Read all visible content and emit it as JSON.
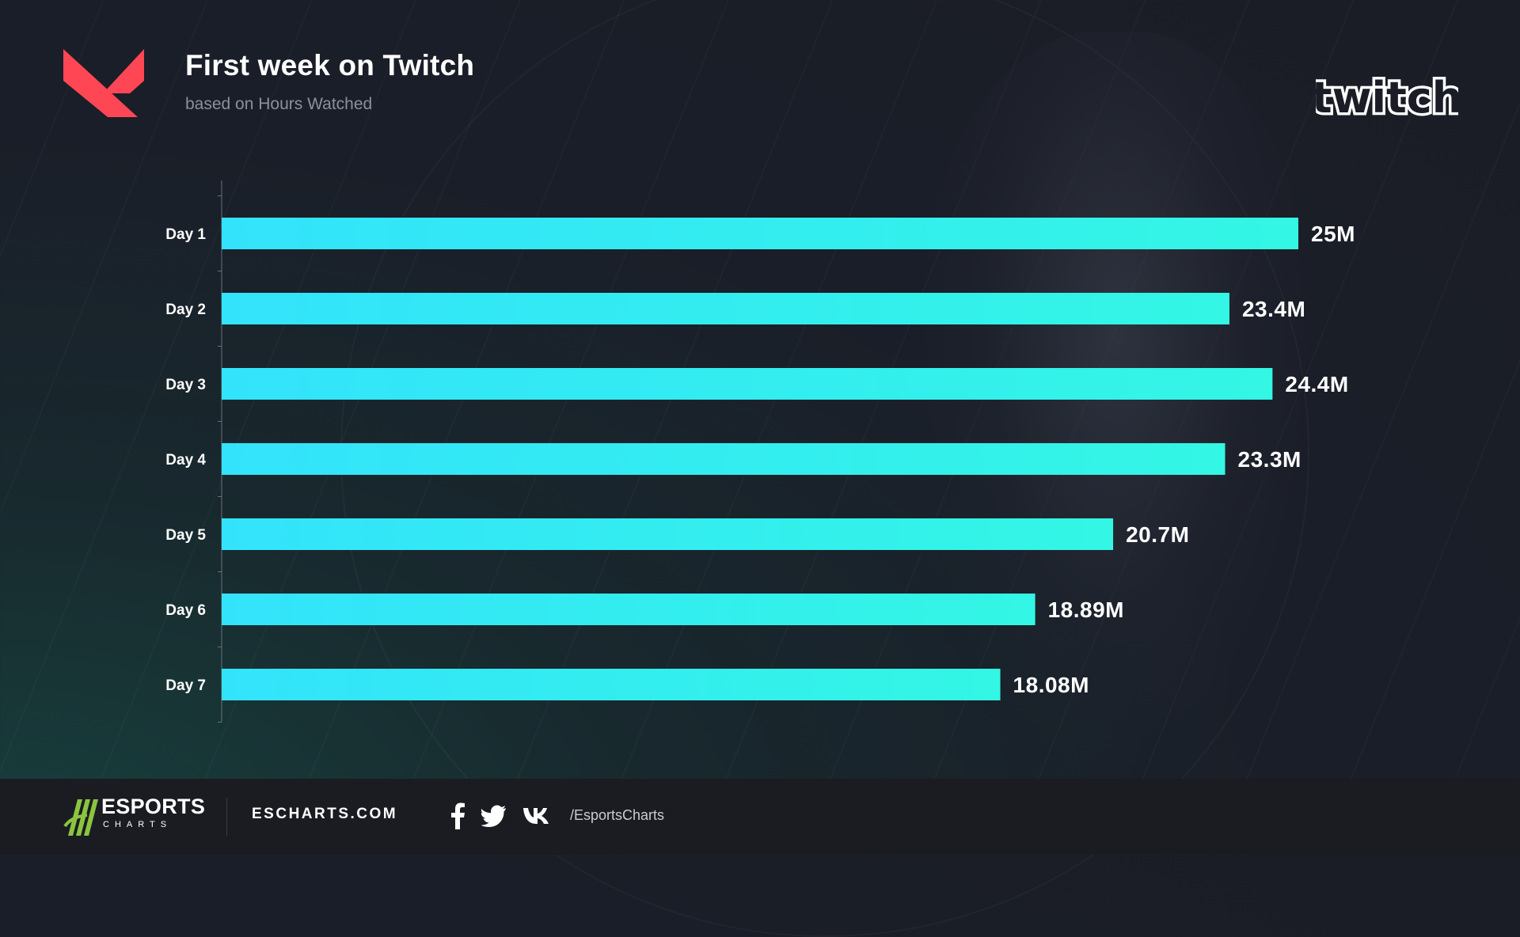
{
  "header": {
    "title": "First week on Twitch",
    "subtitle": "based on Hours Watched"
  },
  "logos": {
    "game_logo": "valorant-icon",
    "platform_logo": "twitch-icon",
    "platform_wordmark": "twitch"
  },
  "chart_data": {
    "type": "bar",
    "orientation": "horizontal",
    "title": "First week on Twitch",
    "subtitle": "based on Hours Watched",
    "categories": [
      "Day 1",
      "Day 2",
      "Day 3",
      "Day 4",
      "Day 5",
      "Day 6",
      "Day 7"
    ],
    "values": [
      25000000,
      23400000,
      24400000,
      23300000,
      20700000,
      18890000,
      18080000
    ],
    "value_labels": [
      "25M",
      "23.4M",
      "24.4M",
      "23.3M",
      "20.7M",
      "18.89M",
      "18.08M"
    ],
    "xlim": [
      0,
      25000000
    ],
    "grid": false,
    "colors": {
      "bar_start": "#33e3fb",
      "bar_end": "#33f6e4",
      "label": "#ffffff"
    }
  },
  "footer": {
    "brand_name": "ESPORTS",
    "brand_sub": "CHARTS",
    "website": "ESCHARTS.COM",
    "social_icons": [
      "facebook-icon",
      "twitter-icon",
      "vk-icon"
    ],
    "handle": "/EsportsCharts"
  }
}
